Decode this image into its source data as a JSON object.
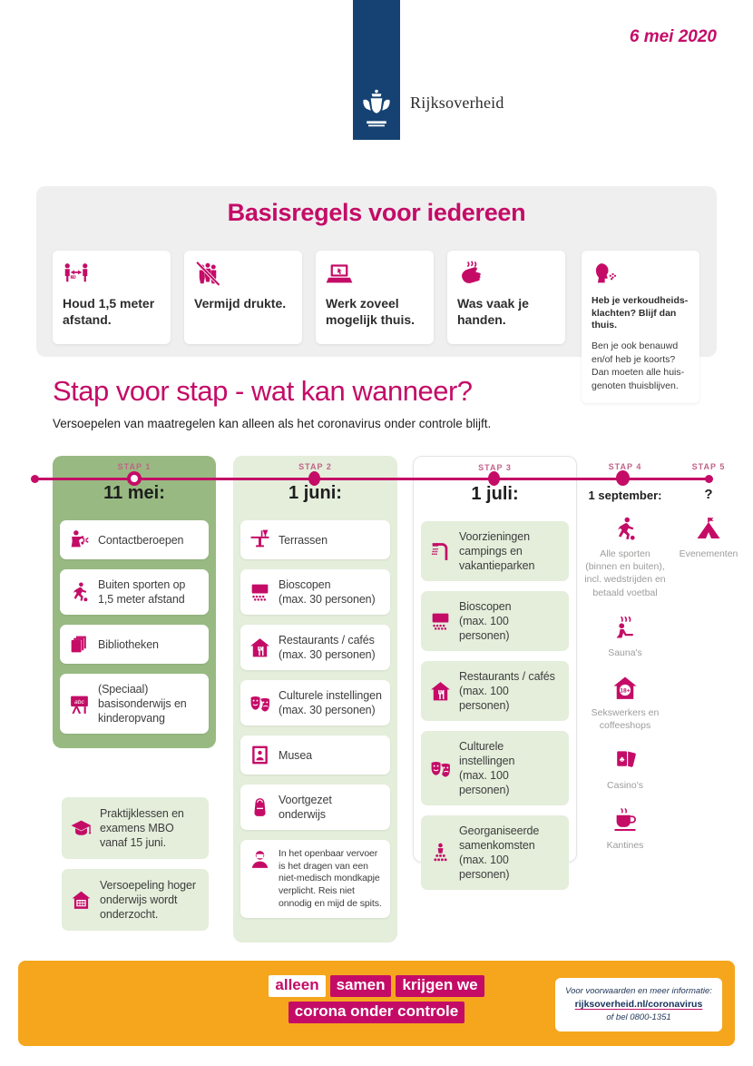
{
  "page": {
    "date": "6 mei 2020",
    "logo_text": "Rijksoverheid"
  },
  "colors": {
    "magenta": "#c40c67",
    "dark_blue": "#154273",
    "green": "#98ba82",
    "light_green": "#e4eedb",
    "orange": "#f5a61d",
    "panel_gray": "#efeff0",
    "gray_text": "#9c9c9b"
  },
  "basisregels": {
    "title": "Basisregels voor iedereen",
    "cards": [
      {
        "icon": "distance",
        "label": "Houd 1,5 meter\nafstand."
      },
      {
        "icon": "crowd",
        "label": "Vermijd drukte."
      },
      {
        "icon": "laptop",
        "label": "Werk zoveel\nmogelijk thuis."
      },
      {
        "icon": "wash-hands",
        "label": "Was vaak je\nhanden."
      }
    ],
    "side_card": {
      "icon": "cough",
      "title": "Heb je verkoudheids-klachten? Blijf dan thuis.",
      "text": "Ben je ook benauwd en/of heb je koorts? Dan moeten alle huis-genoten thuisblijven."
    }
  },
  "stappen": {
    "title": "Stap voor stap - wat kan wanneer?",
    "subtitle": "Versoepelen van maatregelen kan alleen als het coronavirus onder controle blijft.",
    "steps": [
      {
        "label": "STAP 1",
        "date": "11 mei:",
        "items": [
          {
            "icon": "contact-profession",
            "label": "Contactberoepen"
          },
          {
            "icon": "runner",
            "label": "Buiten sporten op\n1,5 meter afstand"
          },
          {
            "icon": "books",
            "label": "Bibliotheken"
          },
          {
            "icon": "school-board",
            "label": "(Speciaal)\nbasisonderwijs en\nkinderopvang"
          }
        ]
      },
      {
        "label": "STAP 2",
        "date": "1 juni:",
        "items": [
          {
            "icon": "terrace",
            "label": "Terrassen"
          },
          {
            "icon": "cinema",
            "label": "Bioscopen\n(max. 30 personen)"
          },
          {
            "icon": "restaurant",
            "label": "Restaurants / cafés\n(max. 30 personen)"
          },
          {
            "icon": "theater-masks",
            "label": "Culturele instellingen\n(max. 30 personen)"
          },
          {
            "icon": "museum",
            "label": "Musea"
          },
          {
            "icon": "backpack",
            "label": "Voortgezet onderwijs"
          },
          {
            "icon": "face-mask",
            "label": "In het openbaar vervoer is het dragen van een niet-medisch mondkapje verplicht. Reis niet onnodig en mijd de spits.",
            "small": true
          }
        ]
      },
      {
        "label": "STAP 3",
        "date": "1 juli:",
        "items": [
          {
            "icon": "shower",
            "label": "Voorzieningen\ncampings en\nvakantieparken"
          },
          {
            "icon": "cinema",
            "label": "Bioscopen\n(max. 100 personen)"
          },
          {
            "icon": "restaurant",
            "label": "Restaurants / cafés\n(max. 100 personen)"
          },
          {
            "icon": "theater-masks",
            "label": "Culturele instellingen\n(max. 100 personen)"
          },
          {
            "icon": "group",
            "label": "Georganiseerde\nsamenkomsten\n(max. 100 personen)"
          }
        ]
      },
      {
        "label": "STAP 4",
        "date": "1 september:",
        "items": [
          {
            "icon": "sport",
            "label": "Alle sporten\n(binnen en buiten),\nincl. wedstrijden en\nbetaald voetbal"
          },
          {
            "icon": "sauna",
            "label": "Sauna's"
          },
          {
            "icon": "house-18plus",
            "label": "Sekswerkers en\ncoffeeshops"
          },
          {
            "icon": "playing-cards",
            "label": "Casino's"
          },
          {
            "icon": "coffee-cup",
            "label": "Kantines"
          }
        ]
      },
      {
        "label": "STAP 5",
        "date": "?",
        "items": [
          {
            "icon": "tent",
            "label": "Evenementen"
          }
        ]
      }
    ],
    "extra": [
      {
        "icon": "graduation-cap",
        "label": "Praktijklessen en\nexamens MBO\nvanaf 15 juni."
      },
      {
        "icon": "school-building",
        "label": "Versoepeling hoger\nonderwijs wordt\nonderzocht."
      }
    ]
  },
  "footer": {
    "slogan": {
      "word1": "alleen",
      "word2": "samen",
      "word3": "krijgen we",
      "line2": "corona onder controle"
    },
    "info": {
      "line1": "Voor voorwaarden en meer informatie:",
      "link": "rijksoverheid.nl/coronavirus",
      "line3": "of bel 0800-1351"
    }
  }
}
